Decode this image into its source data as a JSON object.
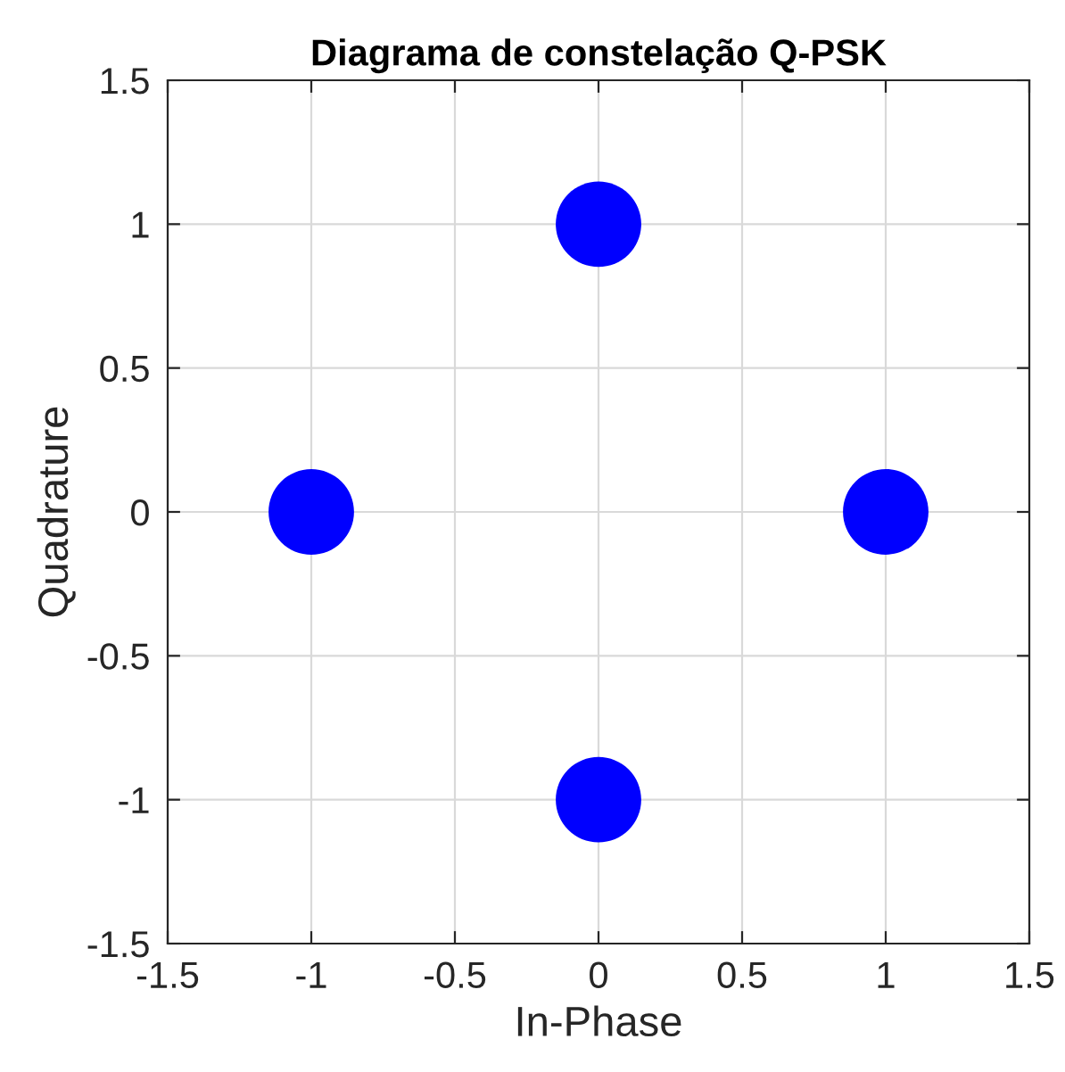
{
  "chart_data": {
    "type": "scatter",
    "title": "Diagrama de constelação Q-PSK",
    "xlabel": "In-Phase",
    "ylabel": "Quadrature",
    "x": [
      1,
      0,
      -1,
      0
    ],
    "series": [
      {
        "color": "#0000ff",
        "values": [
          0,
          1,
          0,
          -1
        ]
      }
    ],
    "marker": "circle",
    "xlim": [
      -1.5,
      1.5
    ],
    "ylim": [
      -1.5,
      1.5
    ],
    "xticks": [
      {
        "value": -1.5,
        "label": "-1.5"
      },
      {
        "value": -1,
        "label": "-1"
      },
      {
        "value": -0.5,
        "label": "-0.5"
      },
      0,
      0.5,
      1,
      1.5
    ],
    "yticks": [
      {
        "value": -1.5,
        "label": "-1.5"
      },
      {
        "value": -1,
        "label": "-1"
      },
      {
        "value": -0.5,
        "label": "-0.5"
      },
      0,
      0.5,
      1,
      1.5
    ],
    "grid": true
  }
}
